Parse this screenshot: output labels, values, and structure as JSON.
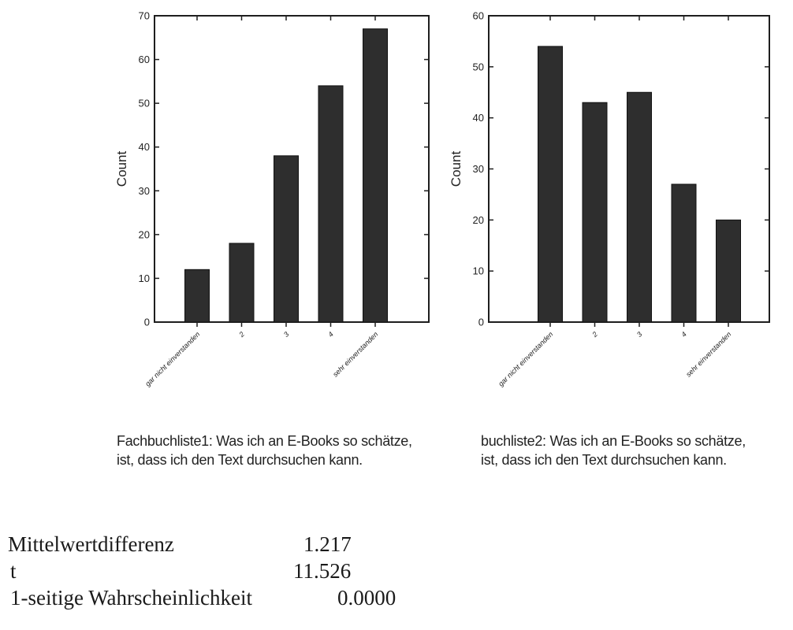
{
  "chart_data": [
    {
      "type": "bar",
      "ylabel": "Count",
      "xlabel": "",
      "categories": [
        "gar nicht einverstanden",
        "2",
        "3",
        "4",
        "sehr einverstanden"
      ],
      "values": [
        12,
        18,
        38,
        54,
        67
      ],
      "ylim": [
        0,
        70
      ],
      "yticks": [
        0,
        10,
        20,
        30,
        40,
        50,
        60,
        70
      ],
      "caption": [
        "Fachbuchliste1: Was ich an E-Books so schätze,",
        "ist, dass ich den Text durchsuchen kann."
      ],
      "bar_color": "#2e2e2e",
      "grid": false
    },
    {
      "type": "bar",
      "ylabel": "Count",
      "xlabel": "",
      "categories": [
        "gar nicht einverstanden",
        "2",
        "3",
        "4",
        "sehr einverstanden"
      ],
      "values": [
        54,
        43,
        45,
        27,
        20
      ],
      "ylim": [
        0,
        60
      ],
      "yticks": [
        0,
        10,
        20,
        30,
        40,
        50,
        60
      ],
      "caption": [
        "buchliste2: Was ich an E-Books so schätze,",
        "ist, dass ich den Text durchsuchen kann."
      ],
      "bar_color": "#2e2e2e",
      "grid": false
    }
  ],
  "stats": [
    {
      "label": "Mittelwertdifferenz",
      "value": "1.217"
    },
    {
      "label": "t",
      "value": "11.526"
    },
    {
      "label": "1-seitige Wahrscheinlichkeit",
      "value": "0.0000"
    }
  ]
}
